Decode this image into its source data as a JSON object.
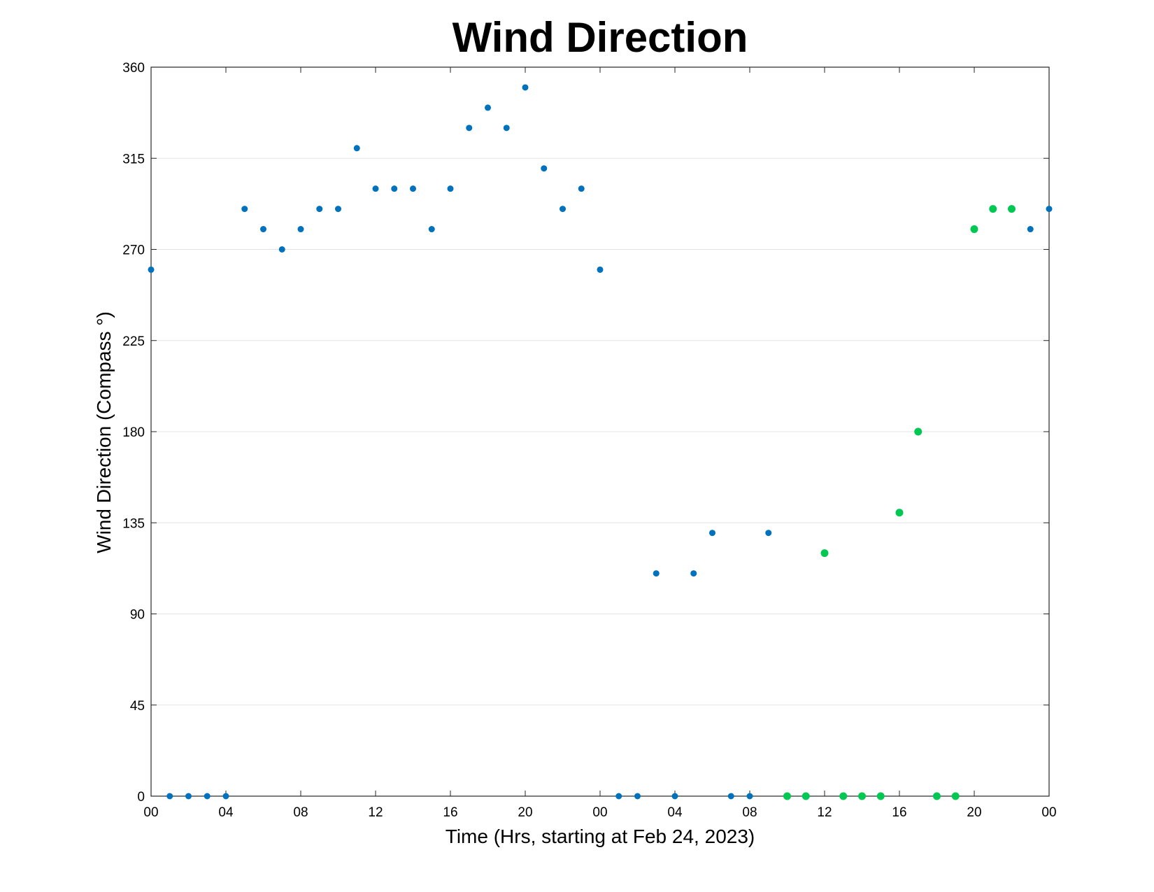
{
  "chart_data": {
    "type": "scatter",
    "title": "Wind Direction",
    "xlabel": "Time (Hrs, starting at Feb 24, 2023)",
    "ylabel": "Wind Direction (Compass °)",
    "x_unit": "hours",
    "xlim": [
      0,
      48
    ],
    "ylim": [
      0,
      360
    ],
    "x_ticks": [
      0,
      4,
      8,
      12,
      16,
      20,
      24,
      28,
      32,
      36,
      40,
      44,
      48
    ],
    "x_tick_labels": [
      "00",
      "04",
      "08",
      "12",
      "16",
      "20",
      "00",
      "04",
      "08",
      "12",
      "16",
      "20",
      "00"
    ],
    "y_ticks": [
      0,
      45,
      90,
      135,
      180,
      225,
      270,
      315,
      360
    ],
    "y_tick_labels": [
      "0",
      "45",
      "90",
      "135",
      "180",
      "225",
      "270",
      "315",
      "360"
    ],
    "grid": "y",
    "series": [
      {
        "color": "#0072BD",
        "x": [
          0,
          1,
          2,
          3,
          4,
          5,
          6,
          7,
          8,
          9,
          10,
          11,
          12,
          13,
          14,
          15,
          16,
          17,
          18,
          19,
          20,
          21,
          22,
          23,
          24,
          25,
          26,
          27,
          28,
          29,
          30,
          31,
          32,
          33,
          47,
          48
        ],
        "y": [
          260,
          0,
          0,
          0,
          0,
          290,
          280,
          270,
          280,
          290,
          290,
          320,
          300,
          300,
          300,
          280,
          300,
          330,
          340,
          330,
          350,
          310,
          290,
          300,
          260,
          0,
          0,
          110,
          0,
          110,
          130,
          0,
          0,
          130,
          280,
          290
        ]
      },
      {
        "color": "#00C853",
        "x": [
          34,
          35,
          36,
          37,
          38,
          39,
          40,
          41,
          42,
          43,
          44,
          45,
          46
        ],
        "y": [
          0,
          0,
          120,
          0,
          0,
          0,
          140,
          180,
          0,
          0,
          280,
          290,
          290
        ]
      }
    ]
  }
}
